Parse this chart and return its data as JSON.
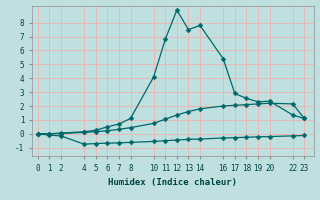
{
  "title": "",
  "xlabel": "Humidex (Indice chaleur)",
  "bg_color": "#c0e0e0",
  "grid_color": "#e8b8b8",
  "line_color": "#006868",
  "xticks": [
    0,
    1,
    2,
    4,
    5,
    6,
    7,
    8,
    10,
    11,
    12,
    13,
    14,
    16,
    17,
    18,
    19,
    20,
    22,
    23
  ],
  "yticks": [
    -1,
    0,
    1,
    2,
    3,
    4,
    5,
    6,
    7,
    8
  ],
  "xlim": [
    -0.5,
    23.8
  ],
  "ylim": [
    -1.6,
    9.2
  ],
  "series1_x": [
    0,
    1,
    2,
    4,
    5,
    6,
    7,
    8,
    10,
    11,
    12,
    13,
    14,
    16,
    17,
    18,
    19,
    20,
    22,
    23
  ],
  "series1_y": [
    0.0,
    -0.1,
    -0.15,
    -0.75,
    -0.7,
    -0.68,
    -0.65,
    -0.62,
    -0.55,
    -0.5,
    -0.45,
    -0.4,
    -0.38,
    -0.3,
    -0.28,
    -0.25,
    -0.22,
    -0.2,
    -0.15,
    -0.12
  ],
  "series2_x": [
    0,
    1,
    2,
    4,
    5,
    6,
    7,
    8,
    10,
    11,
    12,
    13,
    14,
    16,
    17,
    18,
    19,
    20,
    22,
    23
  ],
  "series2_y": [
    0.0,
    0.0,
    0.02,
    0.1,
    0.15,
    0.22,
    0.32,
    0.44,
    0.75,
    1.05,
    1.35,
    1.6,
    1.8,
    2.0,
    2.05,
    2.1,
    2.15,
    2.2,
    2.15,
    1.1
  ],
  "series3_x": [
    0,
    1,
    2,
    4,
    5,
    6,
    7,
    8,
    10,
    11,
    12,
    13,
    14,
    16,
    17,
    18,
    19,
    20,
    22,
    23
  ],
  "series3_y": [
    0.0,
    0.0,
    0.05,
    0.15,
    0.25,
    0.5,
    0.7,
    1.1,
    4.1,
    6.8,
    8.9,
    7.5,
    7.8,
    5.4,
    2.9,
    2.55,
    2.3,
    2.35,
    1.35,
    1.1
  ],
  "marker_size": 2.5,
  "linewidth": 0.9,
  "font_color": "#004444",
  "tick_fontsize": 5.5,
  "xlabel_fontsize": 6.5
}
